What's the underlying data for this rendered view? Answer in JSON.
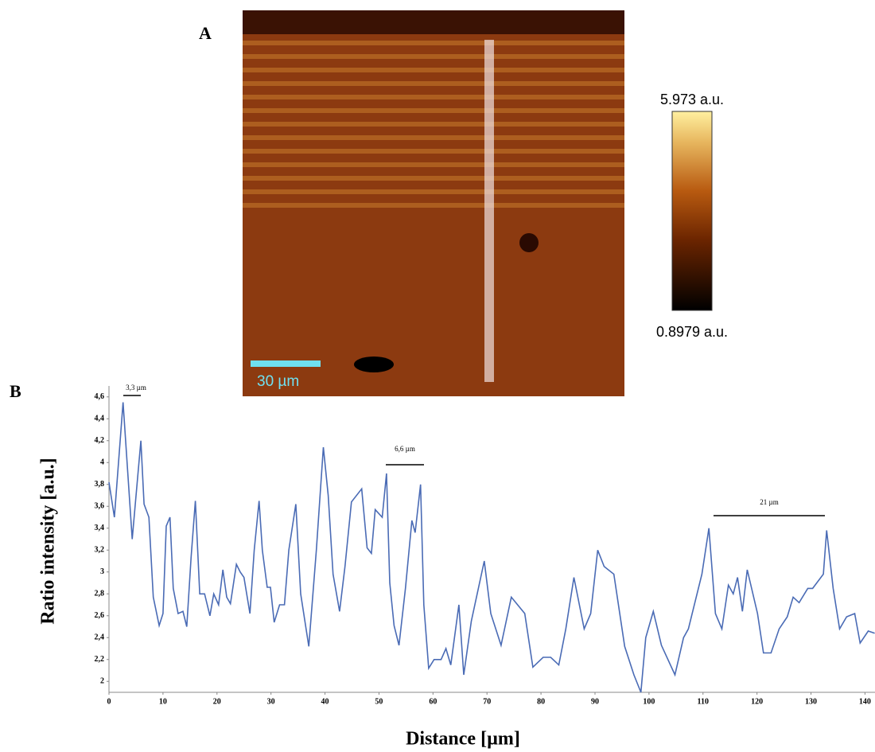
{
  "image_panel": {
    "label": "A",
    "colorbar_max": "5.973 a.u.",
    "colorbar_min": "0.8979 a.u.",
    "scale_bar": "30 µm"
  },
  "chart_data": {
    "type": "line",
    "panel_label": "B",
    "x_label": "Distance [µm]",
    "y_label": "Ratio intensity  [a.u.]",
    "annotations": [
      "3,3 µm",
      "6,6 µm",
      "21 µm"
    ],
    "xlim": [
      0,
      142
    ],
    "ylim": [
      1.9,
      4.7
    ],
    "xticks": [
      0,
      10,
      20,
      30,
      40,
      50,
      60,
      70,
      80,
      90,
      100,
      110,
      120,
      130,
      140
    ],
    "yticks": [
      2,
      {
        "value": 2.2,
        "label": "2,2"
      },
      {
        "value": 2.4,
        "label": "2,4"
      },
      {
        "value": 2.6,
        "label": "2,6"
      },
      {
        "value": 2.8,
        "label": "2,8"
      },
      3,
      {
        "value": 3.2,
        "label": "3,2"
      },
      {
        "value": 3.4,
        "label": "3,4"
      },
      {
        "value": 3.6,
        "label": "3,6"
      },
      {
        "value": 3.8,
        "label": "3,8"
      },
      4,
      {
        "value": 4.2,
        "label": "4,2"
      },
      {
        "value": 4.4,
        "label": "4,4"
      },
      {
        "value": 4.6,
        "label": "4,6"
      }
    ],
    "series": [
      {
        "name": "Ratio intensity",
        "color": "#4a6bb5",
        "x": [
          0,
          1.0,
          2.6,
          4.3,
          5.9,
          6.5,
          7.4,
          8.2,
          9.3,
          10.0,
          10.6,
          11.3,
          11.9,
          12.8,
          13.7,
          14.4,
          15.2,
          16.0,
          16.8,
          17.7,
          18.7,
          19.4,
          20.3,
          21.1,
          21.8,
          22.5,
          23.6,
          24.3,
          25.0,
          26.1,
          26.9,
          27.8,
          28.4,
          29.3,
          29.9,
          30.6,
          31.6,
          32.5,
          33.3,
          34.6,
          35.5,
          37.0,
          38.4,
          39.7,
          40.6,
          41.5,
          42.7,
          43.7,
          44.9,
          46.8,
          47.8,
          48.6,
          49.3,
          50.6,
          51.4,
          52.0,
          52.8,
          53.7,
          54.9,
          56.1,
          56.7,
          57.7,
          58.3,
          59.2,
          60.2,
          61.5,
          62.4,
          63.3,
          64.8,
          65.7,
          67.1,
          69.5,
          70.7,
          72.6,
          74.5,
          77.0,
          78.5,
          80.4,
          81.8,
          83.3,
          84.6,
          86.1,
          88.0,
          89.2,
          90.5,
          91.7,
          93.5,
          95.5,
          97.2,
          98.5,
          99.4,
          100.8,
          102.3,
          104.8,
          106.4,
          107.3,
          109.8,
          111.1,
          112.3,
          113.5,
          114.7,
          115.6,
          116.4,
          117.3,
          118.2,
          120.1,
          121.2,
          122.6,
          124.1,
          125.6,
          126.7,
          127.8,
          129.4,
          130.3,
          132.3,
          132.9,
          134.1,
          135.3,
          136.6,
          138.1,
          139.1,
          140.6,
          141.8
        ],
        "values": [
          3.82,
          3.5,
          4.55,
          3.3,
          4.2,
          3.62,
          3.5,
          2.77,
          2.51,
          2.62,
          3.42,
          3.5,
          2.85,
          2.62,
          2.64,
          2.5,
          3.13,
          3.65,
          2.8,
          2.8,
          2.6,
          2.8,
          2.7,
          3.02,
          2.77,
          2.71,
          3.07,
          3.0,
          2.95,
          2.62,
          3.2,
          3.65,
          3.2,
          2.86,
          2.86,
          2.54,
          2.7,
          2.7,
          3.2,
          3.62,
          2.8,
          2.32,
          3.2,
          4.14,
          3.7,
          2.98,
          2.64,
          3.05,
          3.64,
          3.76,
          3.22,
          3.17,
          3.57,
          3.5,
          3.9,
          2.9,
          2.51,
          2.33,
          2.85,
          3.47,
          3.36,
          3.8,
          2.7,
          2.12,
          2.2,
          2.2,
          2.3,
          2.15,
          2.7,
          2.06,
          2.55,
          3.1,
          2.62,
          2.33,
          2.77,
          2.62,
          2.13,
          2.22,
          2.22,
          2.15,
          2.48,
          2.95,
          2.48,
          2.62,
          3.2,
          3.05,
          2.98,
          2.32,
          2.06,
          1.9,
          2.4,
          2.64,
          2.33,
          2.06,
          2.4,
          2.48,
          2.98,
          3.4,
          2.62,
          2.48,
          2.88,
          2.8,
          2.95,
          2.64,
          3.02,
          2.62,
          2.26,
          2.26,
          2.48,
          2.59,
          2.77,
          2.72,
          2.85,
          2.85,
          2.98,
          3.38,
          2.85,
          2.48,
          2.59,
          2.62,
          2.35,
          2.46,
          2.44
        ]
      }
    ]
  }
}
